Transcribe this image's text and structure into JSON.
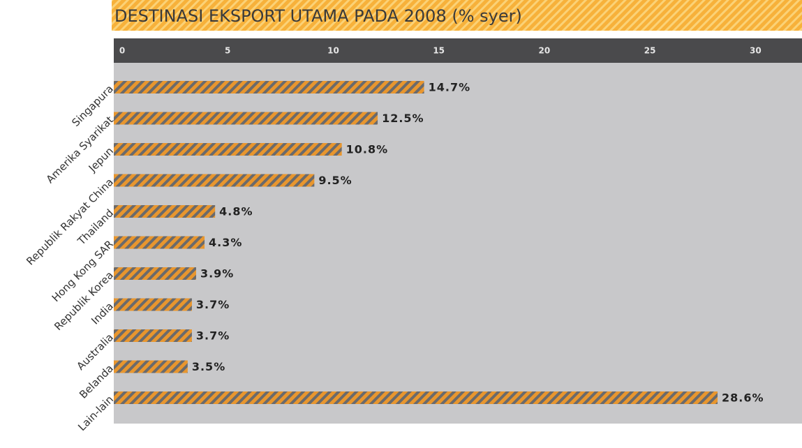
{
  "chart_data": {
    "type": "bar",
    "orientation": "horizontal",
    "title": "DESTINASI EKSPORT UTAMA PADA 2008 (% syer)",
    "categories": [
      "Singapura",
      "Amerika Syarikat",
      "Jepun",
      "Republik Rakyat China",
      "Thailand",
      "Hong Kong SAR",
      "Republik Korea",
      "India",
      "Australia",
      "Belanda",
      "Lain-lain"
    ],
    "values": [
      14.7,
      12.5,
      10.8,
      9.5,
      4.8,
      4.3,
      3.9,
      3.7,
      3.7,
      3.5,
      28.6
    ],
    "value_labels": [
      "14.7%",
      "12.5%",
      "10.8%",
      "9.5%",
      "4.8%",
      "4.3%",
      "3.9%",
      "3.7%",
      "3.7%",
      "3.5%",
      "28.6%"
    ],
    "color": "#e8962e",
    "xlim": [
      0,
      32.6
    ],
    "xticks": [
      0,
      5,
      10,
      15,
      20,
      25,
      30
    ],
    "axis_position": "top",
    "grid": false
  }
}
